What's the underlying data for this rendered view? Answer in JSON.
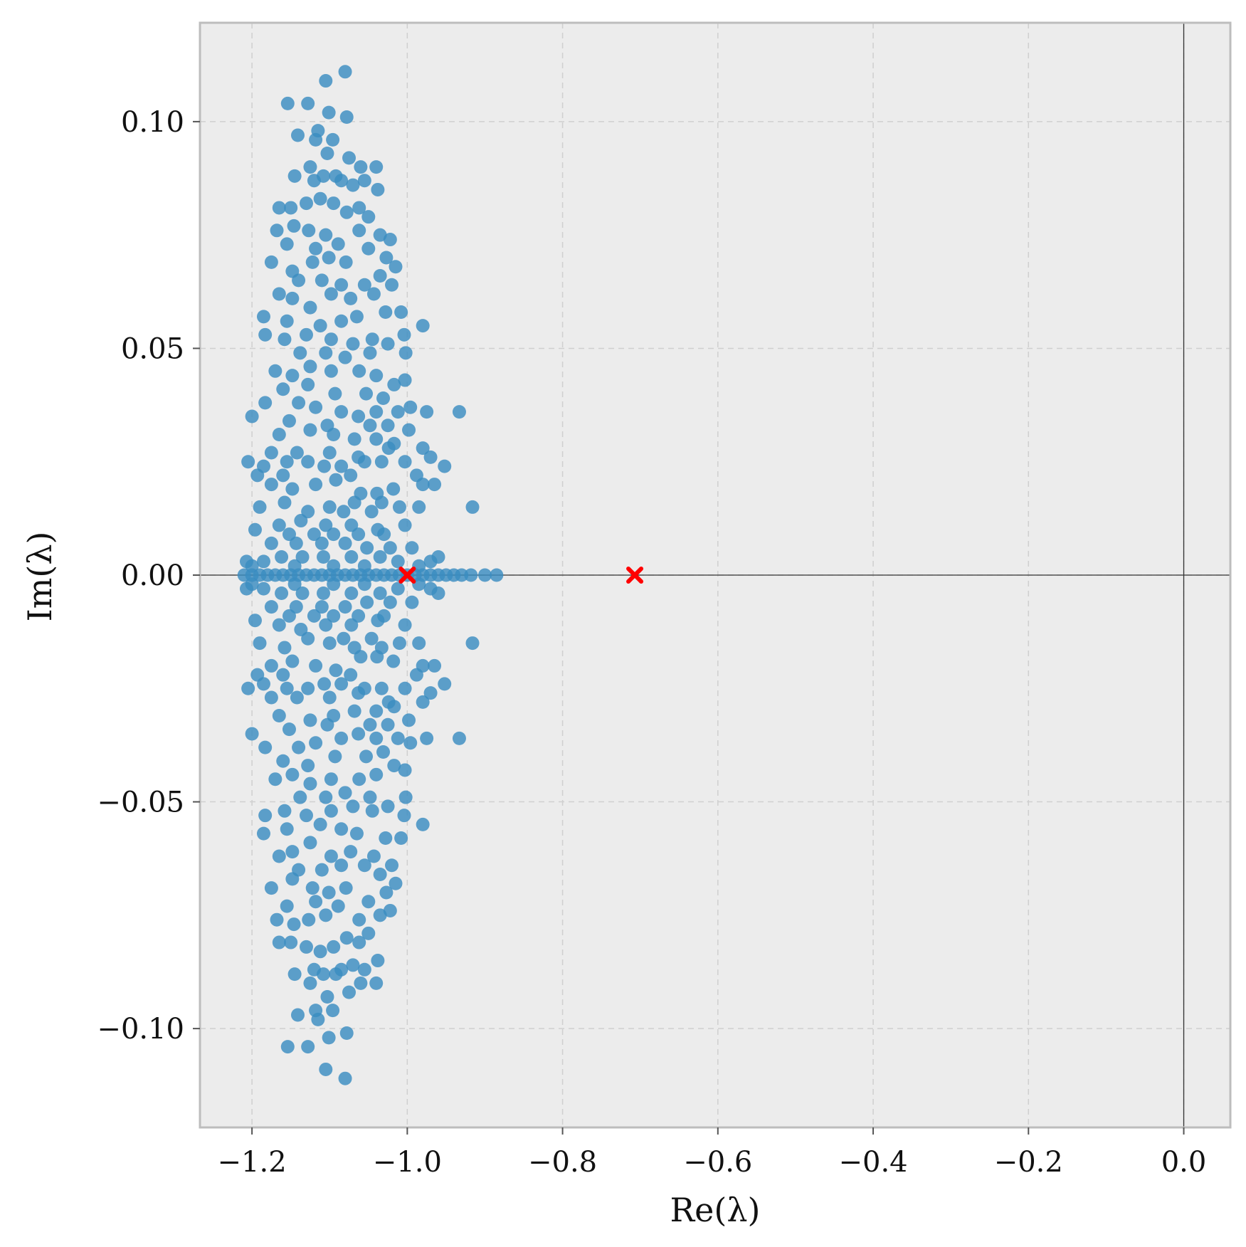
{
  "chart_data": {
    "type": "scatter",
    "title": "",
    "xlabel": "Re(λ)",
    "ylabel": "Im(λ)",
    "xlim": [
      -1.267,
      0.06
    ],
    "ylim": [
      -0.1218,
      0.1218
    ],
    "xticks": [
      -1.2,
      -1.0,
      -0.8,
      -0.6,
      -0.4,
      -0.2,
      0.0
    ],
    "xtick_labels": [
      "−1.2",
      "−1.0",
      "−0.8",
      "−0.6",
      "−0.4",
      "−0.2",
      "0.0"
    ],
    "yticks": [
      0.1,
      0.05,
      0.0,
      -0.05,
      -0.1
    ],
    "ytick_labels": [
      "0.10",
      "0.05",
      "0.00",
      "−0.05",
      "−0.10"
    ],
    "grid": true,
    "reference_lines": {
      "x": 0.0,
      "y": 0.0
    },
    "series": [
      {
        "marker": "circle",
        "color": "#3a8cc1",
        "symmetric_about_real_axis": true,
        "points": [
          [
            -1.08,
            0.111
          ],
          [
            -1.154,
            0.104
          ],
          [
            -1.128,
            0.104
          ],
          [
            -1.105,
            0.109
          ],
          [
            -1.101,
            0.102
          ],
          [
            -1.078,
            0.101
          ],
          [
            -1.141,
            0.097
          ],
          [
            -1.115,
            0.098
          ],
          [
            -1.096,
            0.096
          ],
          [
            -1.118,
            0.096
          ],
          [
            -1.103,
            0.093
          ],
          [
            -1.125,
            0.09
          ],
          [
            -1.108,
            0.088
          ],
          [
            -1.092,
            0.088
          ],
          [
            -1.075,
            0.092
          ],
          [
            -1.06,
            0.09
          ],
          [
            -1.04,
            0.09
          ],
          [
            -1.145,
            0.088
          ],
          [
            -1.12,
            0.087
          ],
          [
            -1.085,
            0.087
          ],
          [
            -1.07,
            0.086
          ],
          [
            -1.055,
            0.087
          ],
          [
            -1.038,
            0.085
          ],
          [
            -1.165,
            0.081
          ],
          [
            -1.15,
            0.081
          ],
          [
            -1.13,
            0.082
          ],
          [
            -1.112,
            0.083
          ],
          [
            -1.095,
            0.082
          ],
          [
            -1.078,
            0.08
          ],
          [
            -1.062,
            0.081
          ],
          [
            -1.05,
            0.079
          ],
          [
            -1.168,
            0.076
          ],
          [
            -1.146,
            0.077
          ],
          [
            -1.127,
            0.076
          ],
          [
            -1.105,
            0.075
          ],
          [
            -1.089,
            0.073
          ],
          [
            -1.062,
            0.076
          ],
          [
            -1.035,
            0.075
          ],
          [
            -1.022,
            0.074
          ],
          [
            -1.155,
            0.073
          ],
          [
            -1.118,
            0.072
          ],
          [
            -1.175,
            0.069
          ],
          [
            -1.148,
            0.067
          ],
          [
            -1.122,
            0.069
          ],
          [
            -1.101,
            0.07
          ],
          [
            -1.079,
            0.069
          ],
          [
            -1.05,
            0.072
          ],
          [
            -1.027,
            0.07
          ],
          [
            -1.015,
            0.068
          ],
          [
            -1.14,
            0.065
          ],
          [
            -1.11,
            0.065
          ],
          [
            -1.085,
            0.064
          ],
          [
            -1.055,
            0.064
          ],
          [
            -1.035,
            0.066
          ],
          [
            -1.02,
            0.064
          ],
          [
            -1.165,
            0.062
          ],
          [
            -1.148,
            0.061
          ],
          [
            -1.125,
            0.059
          ],
          [
            -1.098,
            0.062
          ],
          [
            -1.073,
            0.061
          ],
          [
            -1.043,
            0.062
          ],
          [
            -1.028,
            0.058
          ],
          [
            -1.008,
            0.058
          ],
          [
            -1.185,
            0.057
          ],
          [
            -1.155,
            0.056
          ],
          [
            -1.112,
            0.055
          ],
          [
            -1.085,
            0.056
          ],
          [
            -1.065,
            0.057
          ],
          [
            -1.183,
            0.053
          ],
          [
            -1.158,
            0.052
          ],
          [
            -1.13,
            0.053
          ],
          [
            -1.098,
            0.052
          ],
          [
            -1.07,
            0.051
          ],
          [
            -1.045,
            0.052
          ],
          [
            -1.025,
            0.051
          ],
          [
            -1.004,
            0.053
          ],
          [
            -0.98,
            0.055
          ],
          [
            -1.138,
            0.049
          ],
          [
            -1.105,
            0.049
          ],
          [
            -1.08,
            0.048
          ],
          [
            -1.048,
            0.049
          ],
          [
            -1.002,
            0.049
          ],
          [
            -1.17,
            0.045
          ],
          [
            -1.148,
            0.044
          ],
          [
            -1.125,
            0.046
          ],
          [
            -1.098,
            0.045
          ],
          [
            -1.062,
            0.045
          ],
          [
            -1.04,
            0.044
          ],
          [
            -1.017,
            0.042
          ],
          [
            -1.003,
            0.043
          ],
          [
            -1.16,
            0.041
          ],
          [
            -1.128,
            0.042
          ],
          [
            -1.093,
            0.04
          ],
          [
            -1.053,
            0.04
          ],
          [
            -1.031,
            0.039
          ],
          [
            -1.183,
            0.038
          ],
          [
            -1.14,
            0.038
          ],
          [
            -1.118,
            0.037
          ],
          [
            -1.085,
            0.036
          ],
          [
            -1.063,
            0.035
          ],
          [
            -1.04,
            0.036
          ],
          [
            -1.012,
            0.036
          ],
          [
            -0.996,
            0.037
          ],
          [
            -0.975,
            0.036
          ],
          [
            -0.933,
            0.036
          ],
          [
            -1.2,
            0.035
          ],
          [
            -1.152,
            0.034
          ],
          [
            -1.103,
            0.033
          ],
          [
            -1.048,
            0.033
          ],
          [
            -1.025,
            0.033
          ],
          [
            -1.165,
            0.031
          ],
          [
            -1.125,
            0.032
          ],
          [
            -1.095,
            0.031
          ],
          [
            -1.068,
            0.03
          ],
          [
            -1.04,
            0.03
          ],
          [
            -1.017,
            0.029
          ],
          [
            -0.998,
            0.032
          ],
          [
            -1.175,
            0.027
          ],
          [
            -1.142,
            0.027
          ],
          [
            -1.1,
            0.027
          ],
          [
            -1.063,
            0.026
          ],
          [
            -1.024,
            0.028
          ],
          [
            -0.98,
            0.028
          ],
          [
            -0.97,
            0.026
          ],
          [
            -1.205,
            0.025
          ],
          [
            -1.185,
            0.024
          ],
          [
            -1.155,
            0.025
          ],
          [
            -1.128,
            0.025
          ],
          [
            -1.107,
            0.024
          ],
          [
            -1.085,
            0.024
          ],
          [
            -1.055,
            0.025
          ],
          [
            -1.033,
            0.025
          ],
          [
            -1.003,
            0.025
          ],
          [
            -0.952,
            0.024
          ],
          [
            -1.193,
            0.022
          ],
          [
            -1.16,
            0.022
          ],
          [
            -1.073,
            0.022
          ],
          [
            -0.988,
            0.022
          ],
          [
            -1.175,
            0.02
          ],
          [
            -1.148,
            0.019
          ],
          [
            -1.118,
            0.02
          ],
          [
            -1.092,
            0.021
          ],
          [
            -1.06,
            0.018
          ],
          [
            -1.039,
            0.018
          ],
          [
            -1.018,
            0.019
          ],
          [
            -0.98,
            0.02
          ],
          [
            -0.965,
            0.02
          ],
          [
            -1.158,
            0.016
          ],
          [
            -1.1,
            0.015
          ],
          [
            -1.068,
            0.016
          ],
          [
            -1.033,
            0.016
          ],
          [
            -1.19,
            0.015
          ],
          [
            -1.128,
            0.014
          ],
          [
            -1.082,
            0.014
          ],
          [
            -1.046,
            0.014
          ],
          [
            -1.01,
            0.015
          ],
          [
            -0.985,
            0.015
          ],
          [
            -0.916,
            0.015
          ],
          [
            -1.165,
            0.011
          ],
          [
            -1.137,
            0.012
          ],
          [
            -1.105,
            0.011
          ],
          [
            -1.072,
            0.011
          ],
          [
            -1.038,
            0.01
          ],
          [
            -1.003,
            0.011
          ],
          [
            -1.196,
            0.01
          ],
          [
            -1.152,
            0.009
          ],
          [
            -1.12,
            0.009
          ],
          [
            -1.095,
            0.009
          ],
          [
            -1.063,
            0.009
          ],
          [
            -1.03,
            0.009
          ],
          [
            -1.175,
            0.007
          ],
          [
            -1.143,
            0.007
          ],
          [
            -1.11,
            0.007
          ],
          [
            -1.08,
            0.007
          ],
          [
            -1.052,
            0.006
          ],
          [
            -1.022,
            0.006
          ],
          [
            -0.994,
            0.006
          ],
          [
            -1.207,
            0.003
          ],
          [
            -1.185,
            0.003
          ],
          [
            -1.162,
            0.004
          ],
          [
            -1.135,
            0.004
          ],
          [
            -1.108,
            0.004
          ],
          [
            -1.072,
            0.004
          ],
          [
            -1.035,
            0.004
          ],
          [
            -1.012,
            0.003
          ],
          [
            -0.985,
            0.002
          ],
          [
            -0.97,
            0.003
          ],
          [
            -0.96,
            0.004
          ],
          [
            -1.2,
            0.002
          ],
          [
            -1.145,
            0.002
          ],
          [
            -1.095,
            0.002
          ],
          [
            -1.055,
            0.002
          ]
        ],
        "real_axis_points": [
          [
            -1.21,
            0
          ],
          [
            -1.2,
            0
          ],
          [
            -1.19,
            0
          ],
          [
            -1.18,
            0
          ],
          [
            -1.17,
            0
          ],
          [
            -1.16,
            0
          ],
          [
            -1.15,
            0
          ],
          [
            -1.14,
            0
          ],
          [
            -1.13,
            0
          ],
          [
            -1.12,
            0
          ],
          [
            -1.11,
            0
          ],
          [
            -1.1,
            0
          ],
          [
            -1.09,
            0
          ],
          [
            -1.08,
            0
          ],
          [
            -1.07,
            0
          ],
          [
            -1.06,
            0
          ],
          [
            -1.05,
            0
          ],
          [
            -1.04,
            0
          ],
          [
            -1.03,
            0
          ],
          [
            -1.02,
            0
          ],
          [
            -1.01,
            0
          ],
          [
            -1.0,
            0
          ],
          [
            -0.99,
            0
          ],
          [
            -0.98,
            0
          ],
          [
            -0.97,
            0
          ],
          [
            -0.96,
            0
          ],
          [
            -0.95,
            0
          ],
          [
            -0.94,
            0
          ],
          [
            -0.93,
            0
          ],
          [
            -0.918,
            0
          ],
          [
            -0.9,
            0
          ],
          [
            -0.885,
            0
          ]
        ]
      },
      {
        "marker": "x",
        "color": "#ff0000",
        "points": [
          [
            -1.0,
            0.0
          ],
          [
            -0.707,
            0.0
          ]
        ]
      }
    ]
  }
}
